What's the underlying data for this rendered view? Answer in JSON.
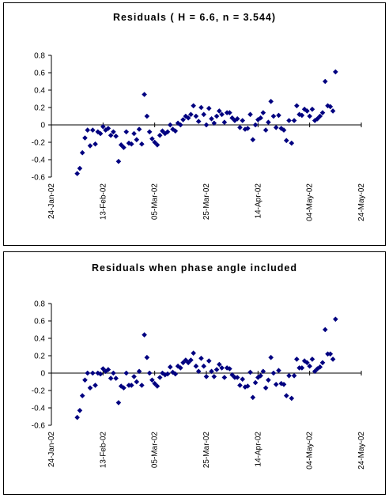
{
  "chart_data": [
    {
      "type": "scatter",
      "title": "Residuals ( H = 6.6, n = 3.544)",
      "xlabel": "",
      "ylabel": "",
      "ylim": [
        -0.6,
        0.8
      ],
      "yticks": [
        "0.8",
        "0.6",
        "0.4",
        "0.2",
        "0",
        "-0.2",
        "-0.4",
        "-0.6"
      ],
      "xlim": [
        "2002-01-24",
        "2002-05-24"
      ],
      "xticks": [
        "24-Jan-02",
        "13-Feb-02",
        "05-Mar-02",
        "25-Mar-02",
        "14-Apr-02",
        "04-May-02",
        "24-May-02"
      ],
      "marker_color": "#000080",
      "points": [
        [
          "2002-02-03",
          -0.56
        ],
        [
          "2002-02-04",
          -0.5
        ],
        [
          "2002-02-05",
          -0.32
        ],
        [
          "2002-02-06",
          -0.15
        ],
        [
          "2002-02-07",
          -0.06
        ],
        [
          "2002-02-08",
          -0.24
        ],
        [
          "2002-02-09",
          -0.06
        ],
        [
          "2002-02-10",
          -0.22
        ],
        [
          "2002-02-11",
          -0.08
        ],
        [
          "2002-02-12",
          -0.1
        ],
        [
          "2002-02-13",
          -0.02
        ],
        [
          "2002-02-14",
          -0.06
        ],
        [
          "2002-02-15",
          -0.04
        ],
        [
          "2002-02-16",
          -0.12
        ],
        [
          "2002-02-17",
          -0.08
        ],
        [
          "2002-02-18",
          -0.13
        ],
        [
          "2002-02-19",
          -0.42
        ],
        [
          "2002-02-20",
          -0.23
        ],
        [
          "2002-02-21",
          -0.26
        ],
        [
          "2002-02-22",
          -0.08
        ],
        [
          "2002-02-23",
          -0.21
        ],
        [
          "2002-02-24",
          -0.22
        ],
        [
          "2002-02-25",
          -0.1
        ],
        [
          "2002-02-26",
          -0.17
        ],
        [
          "2002-02-27",
          -0.05
        ],
        [
          "2002-02-28",
          -0.22
        ],
        [
          "2002-03-01",
          0.35
        ],
        [
          "2002-03-02",
          0.1
        ],
        [
          "2002-03-03",
          -0.08
        ],
        [
          "2002-03-04",
          -0.16
        ],
        [
          "2002-03-05",
          -0.2
        ],
        [
          "2002-03-06",
          -0.23
        ],
        [
          "2002-03-07",
          -0.12
        ],
        [
          "2002-03-08",
          -0.07
        ],
        [
          "2002-03-09",
          -0.1
        ],
        [
          "2002-03-10",
          -0.08
        ],
        [
          "2002-03-11",
          0.0
        ],
        [
          "2002-03-12",
          -0.05
        ],
        [
          "2002-03-13",
          -0.07
        ],
        [
          "2002-03-14",
          0.02
        ],
        [
          "2002-03-15",
          0.0
        ],
        [
          "2002-03-16",
          0.06
        ],
        [
          "2002-03-17",
          0.1
        ],
        [
          "2002-03-18",
          0.08
        ],
        [
          "2002-03-19",
          0.12
        ],
        [
          "2002-03-20",
          0.22
        ],
        [
          "2002-03-21",
          0.1
        ],
        [
          "2002-03-22",
          0.04
        ],
        [
          "2002-03-23",
          0.2
        ],
        [
          "2002-03-24",
          0.12
        ],
        [
          "2002-03-25",
          0.0
        ],
        [
          "2002-03-26",
          0.19
        ],
        [
          "2002-03-27",
          0.07
        ],
        [
          "2002-03-28",
          0.02
        ],
        [
          "2002-03-29",
          0.1
        ],
        [
          "2002-03-30",
          0.16
        ],
        [
          "2002-03-31",
          0.12
        ],
        [
          "2002-04-01",
          0.03
        ],
        [
          "2002-04-02",
          0.14
        ],
        [
          "2002-04-03",
          0.14
        ],
        [
          "2002-04-04",
          0.08
        ],
        [
          "2002-04-05",
          0.05
        ],
        [
          "2002-04-06",
          0.07
        ],
        [
          "2002-04-07",
          -0.03
        ],
        [
          "2002-04-08",
          0.05
        ],
        [
          "2002-04-09",
          -0.05
        ],
        [
          "2002-04-10",
          -0.04
        ],
        [
          "2002-04-11",
          0.12
        ],
        [
          "2002-04-12",
          -0.17
        ],
        [
          "2002-04-13",
          0.0
        ],
        [
          "2002-04-14",
          0.06
        ],
        [
          "2002-04-15",
          0.08
        ],
        [
          "2002-04-16",
          0.14
        ],
        [
          "2002-04-17",
          -0.06
        ],
        [
          "2002-04-18",
          0.03
        ],
        [
          "2002-04-19",
          0.27
        ],
        [
          "2002-04-20",
          0.1
        ],
        [
          "2002-04-21",
          -0.03
        ],
        [
          "2002-04-22",
          0.11
        ],
        [
          "2002-04-23",
          -0.04
        ],
        [
          "2002-04-24",
          -0.06
        ],
        [
          "2002-04-25",
          -0.18
        ],
        [
          "2002-04-26",
          0.05
        ],
        [
          "2002-04-27",
          -0.21
        ],
        [
          "2002-04-28",
          0.05
        ],
        [
          "2002-04-29",
          0.22
        ],
        [
          "2002-04-30",
          0.12
        ],
        [
          "2002-05-01",
          0.11
        ],
        [
          "2002-05-02",
          0.18
        ],
        [
          "2002-05-03",
          0.16
        ],
        [
          "2002-05-04",
          0.1
        ],
        [
          "2002-05-05",
          0.18
        ],
        [
          "2002-05-06",
          0.05
        ],
        [
          "2002-05-07",
          0.07
        ],
        [
          "2002-05-08",
          0.1
        ],
        [
          "2002-05-09",
          0.14
        ],
        [
          "2002-05-10",
          0.5
        ],
        [
          "2002-05-11",
          0.22
        ],
        [
          "2002-05-12",
          0.21
        ],
        [
          "2002-05-13",
          0.16
        ],
        [
          "2002-05-14",
          0.61
        ]
      ]
    },
    {
      "type": "scatter",
      "title": "Residuals when phase angle included",
      "xlabel": "",
      "ylabel": "",
      "ylim": [
        -0.6,
        0.8
      ],
      "yticks": [
        "0.8",
        "0.6",
        "0.4",
        "0.2",
        "0",
        "-0.2",
        "-0.4",
        "-0.6"
      ],
      "xlim": [
        "2002-01-24",
        "2002-05-24"
      ],
      "xticks": [
        "24-Jan-02",
        "13-Feb-02",
        "05-Mar-02",
        "25-Mar-02",
        "14-Apr-02",
        "04-May-02",
        "24-May-02"
      ],
      "marker_color": "#000080",
      "points": [
        [
          "2002-02-03",
          -0.51
        ],
        [
          "2002-02-04",
          -0.43
        ],
        [
          "2002-02-05",
          -0.26
        ],
        [
          "2002-02-06",
          -0.08
        ],
        [
          "2002-02-07",
          0.0
        ],
        [
          "2002-02-08",
          -0.17
        ],
        [
          "2002-02-09",
          0.0
        ],
        [
          "2002-02-10",
          -0.14
        ],
        [
          "2002-02-11",
          0.0
        ],
        [
          "2002-02-12",
          -0.01
        ],
        [
          "2002-02-13",
          0.05
        ],
        [
          "2002-02-14",
          0.02
        ],
        [
          "2002-02-15",
          0.04
        ],
        [
          "2002-02-16",
          -0.06
        ],
        [
          "2002-02-17",
          0.0
        ],
        [
          "2002-02-18",
          -0.06
        ],
        [
          "2002-02-19",
          -0.34
        ],
        [
          "2002-02-20",
          -0.15
        ],
        [
          "2002-02-21",
          -0.17
        ],
        [
          "2002-02-22",
          0.0
        ],
        [
          "2002-02-23",
          -0.14
        ],
        [
          "2002-02-24",
          -0.14
        ],
        [
          "2002-02-25",
          -0.04
        ],
        [
          "2002-02-26",
          -0.1
        ],
        [
          "2002-02-27",
          0.02
        ],
        [
          "2002-02-28",
          -0.14
        ],
        [
          "2002-03-01",
          0.44
        ],
        [
          "2002-03-02",
          0.18
        ],
        [
          "2002-03-03",
          0.0
        ],
        [
          "2002-03-04",
          -0.08
        ],
        [
          "2002-03-05",
          -0.12
        ],
        [
          "2002-03-06",
          -0.15
        ],
        [
          "2002-03-07",
          -0.05
        ],
        [
          "2002-03-08",
          0.0
        ],
        [
          "2002-03-09",
          -0.02
        ],
        [
          "2002-03-10",
          -0.01
        ],
        [
          "2002-03-11",
          0.07
        ],
        [
          "2002-03-12",
          0.01
        ],
        [
          "2002-03-13",
          -0.01
        ],
        [
          "2002-03-14",
          0.08
        ],
        [
          "2002-03-15",
          0.06
        ],
        [
          "2002-03-16",
          0.12
        ],
        [
          "2002-03-17",
          0.15
        ],
        [
          "2002-03-18",
          0.12
        ],
        [
          "2002-03-19",
          0.15
        ],
        [
          "2002-03-20",
          0.23
        ],
        [
          "2002-03-21",
          0.08
        ],
        [
          "2002-03-22",
          0.02
        ],
        [
          "2002-03-23",
          0.17
        ],
        [
          "2002-03-24",
          0.08
        ],
        [
          "2002-03-25",
          -0.04
        ],
        [
          "2002-03-26",
          0.14
        ],
        [
          "2002-03-27",
          0.02
        ],
        [
          "2002-03-28",
          -0.04
        ],
        [
          "2002-03-29",
          0.04
        ],
        [
          "2002-03-30",
          0.1
        ],
        [
          "2002-03-31",
          0.06
        ],
        [
          "2002-04-01",
          -0.05
        ],
        [
          "2002-04-02",
          0.06
        ],
        [
          "2002-04-03",
          0.05
        ],
        [
          "2002-04-04",
          -0.02
        ],
        [
          "2002-04-05",
          -0.05
        ],
        [
          "2002-04-06",
          -0.05
        ],
        [
          "2002-04-07",
          -0.14
        ],
        [
          "2002-04-08",
          -0.07
        ],
        [
          "2002-04-09",
          -0.16
        ],
        [
          "2002-04-10",
          -0.15
        ],
        [
          "2002-04-11",
          0.01
        ],
        [
          "2002-04-12",
          -0.28
        ],
        [
          "2002-04-13",
          -0.11
        ],
        [
          "2002-04-14",
          -0.05
        ],
        [
          "2002-04-15",
          -0.03
        ],
        [
          "2002-04-16",
          0.02
        ],
        [
          "2002-04-17",
          -0.17
        ],
        [
          "2002-04-18",
          -0.08
        ],
        [
          "2002-04-19",
          0.18
        ],
        [
          "2002-04-20",
          0.0
        ],
        [
          "2002-04-21",
          -0.13
        ],
        [
          "2002-04-22",
          0.03
        ],
        [
          "2002-04-23",
          -0.12
        ],
        [
          "2002-04-24",
          -0.13
        ],
        [
          "2002-04-25",
          -0.26
        ],
        [
          "2002-04-26",
          -0.03
        ],
        [
          "2002-04-27",
          -0.29
        ],
        [
          "2002-04-28",
          -0.03
        ],
        [
          "2002-04-29",
          0.16
        ],
        [
          "2002-04-30",
          0.06
        ],
        [
          "2002-05-01",
          0.06
        ],
        [
          "2002-05-02",
          0.14
        ],
        [
          "2002-05-03",
          0.12
        ],
        [
          "2002-05-04",
          0.08
        ],
        [
          "2002-05-05",
          0.16
        ],
        [
          "2002-05-06",
          0.02
        ],
        [
          "2002-05-07",
          0.05
        ],
        [
          "2002-05-08",
          0.07
        ],
        [
          "2002-05-09",
          0.12
        ],
        [
          "2002-05-10",
          0.5
        ],
        [
          "2002-05-11",
          0.22
        ],
        [
          "2002-05-12",
          0.22
        ],
        [
          "2002-05-13",
          0.16
        ],
        [
          "2002-05-14",
          0.62
        ]
      ]
    }
  ]
}
